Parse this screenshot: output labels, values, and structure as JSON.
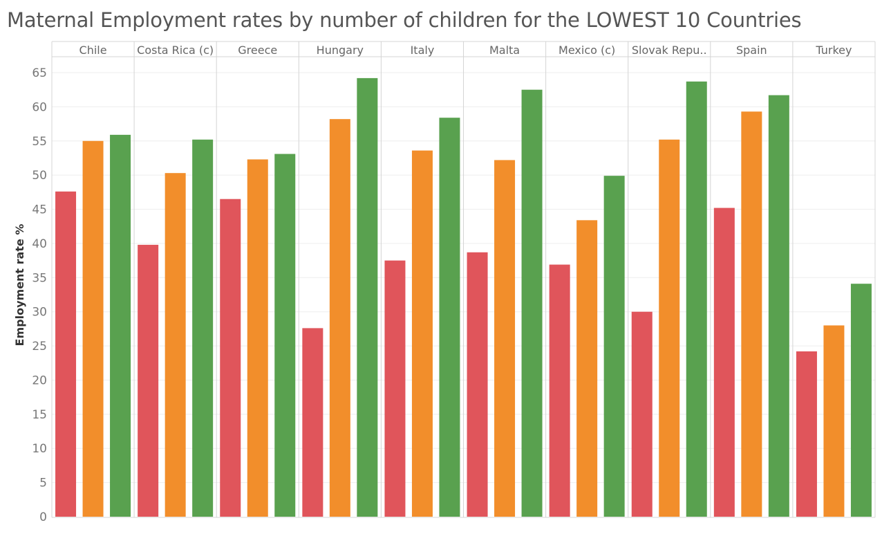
{
  "title": "Maternal Employment rates by number of children for the LOWEST 10 Countries",
  "colors": [
    "#e0555b",
    "#f28e2b",
    "#59a14f"
  ],
  "chart_data": {
    "type": "bar",
    "title": "Maternal Employment rates by number of children for the LOWEST 10 Countries",
    "xlabel": "",
    "ylabel": "Employment rate %",
    "ylim": [
      0,
      65
    ],
    "yticks": [
      0,
      5,
      10,
      15,
      20,
      25,
      30,
      35,
      40,
      45,
      50,
      55,
      60,
      65
    ],
    "grid": true,
    "legend": "none",
    "categories": [
      "Chile",
      "Costa Rica (c)",
      "Greece",
      "Hungary",
      "Italy",
      "Malta",
      "Mexico (c)",
      "Slovak Repu..",
      "Spain",
      "Turkey"
    ],
    "series": [
      {
        "values": [
          47.6,
          39.8,
          46.5,
          27.6,
          37.5,
          38.7,
          36.9,
          30.0,
          45.2,
          24.2
        ]
      },
      {
        "values": [
          55.0,
          50.3,
          52.3,
          58.2,
          53.6,
          52.2,
          43.4,
          55.2,
          59.3,
          28.0
        ]
      },
      {
        "values": [
          55.9,
          55.2,
          53.1,
          64.2,
          58.4,
          62.5,
          49.9,
          63.7,
          61.7,
          34.1
        ]
      }
    ]
  }
}
